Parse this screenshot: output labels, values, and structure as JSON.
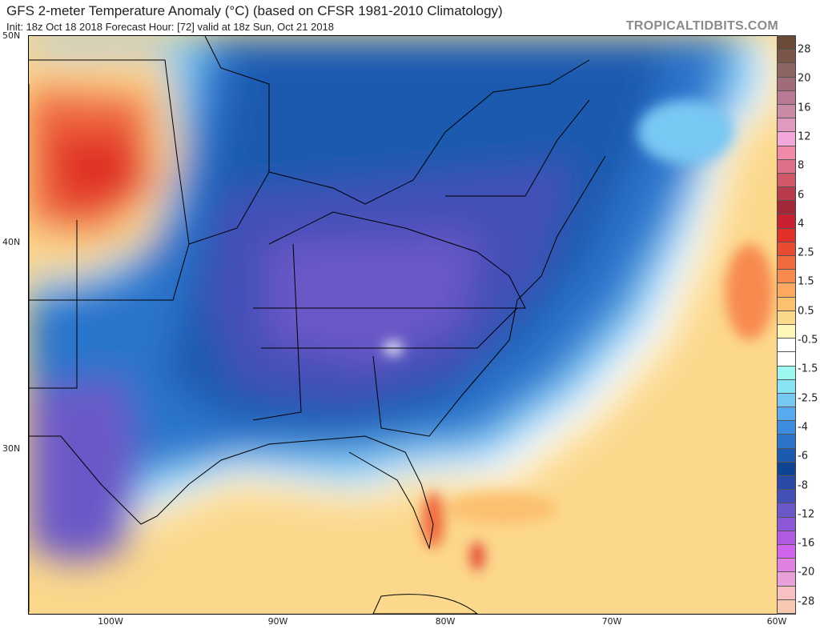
{
  "header": {
    "title": "GFS 2-meter Temperature Anomaly (°C) (based on CFSR 1981-2010 Climatology)",
    "subtitle": "Init: 18z Oct 18 2018   Forecast Hour: [72]   valid at 18z Sun, Oct 21 2018",
    "brand": "TROPICALTIDBITS.COM"
  },
  "axes": {
    "lat_labels": [
      "50N",
      "40N",
      "30N"
    ],
    "lon_labels": [
      "100W",
      "90W",
      "80W",
      "70W",
      "60W"
    ]
  },
  "colorbar": {
    "labels": [
      "28",
      "20",
      "16",
      "12",
      "8",
      "6",
      "4",
      "2.5",
      "1.5",
      "0.5",
      "-0.5",
      "-1.5",
      "-2.5",
      "-4",
      "-6",
      "-8",
      "-12",
      "-16",
      "-20",
      "-28"
    ],
    "colors": [
      "#6b4a3a",
      "#7a5548",
      "#8c6460",
      "#a06c78",
      "#b77a92",
      "#c98aa6",
      "#e09ac0",
      "#f4a8da",
      "#f08aa8",
      "#e07088",
      "#d05868",
      "#b83c4c",
      "#a02838",
      "#c82030",
      "#e03028",
      "#e84c30",
      "#f06a40",
      "#f88a50",
      "#fca860",
      "#fcc070",
      "#fcd88c",
      "#fef6b8",
      "#ffffff",
      "#ffffff",
      "#9ef8f0",
      "#88e4f4",
      "#78c8f4",
      "#5aaaf0",
      "#3c8ce0",
      "#2c74cc",
      "#1c5ab0",
      "#0e4494",
      "#2a4aa8",
      "#4450b8",
      "#6a58c8",
      "#8c58d8",
      "#b05ae4",
      "#d064ec",
      "#e080e0",
      "#e8a0d8",
      "#f8c0c0",
      "#f8c8b0"
    ]
  }
}
